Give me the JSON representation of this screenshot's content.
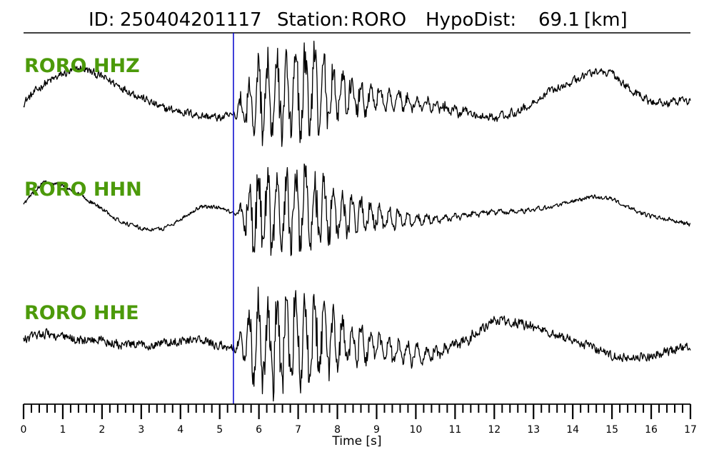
{
  "header": {
    "id_label": "ID:",
    "id_value": "250404201117",
    "station_label": "Station:",
    "station_value": "RORO",
    "hypodist_label": "HypoDist:",
    "hypodist_value": "69.1",
    "hypodist_unit": "[km]"
  },
  "colors": {
    "trace": "#000000",
    "pick_line": "#0000cc",
    "channel_label": "#4c9a0a"
  },
  "chart_data": {
    "type": "line",
    "xlabel": "Time [s]",
    "xlim": [
      0,
      17
    ],
    "x_ticks": [
      0,
      1,
      2,
      3,
      4,
      5,
      6,
      7,
      8,
      9,
      10,
      11,
      12,
      13,
      14,
      15,
      16,
      17
    ],
    "minor_tick_step": 0.2,
    "pick_time": 5.35,
    "series": [
      {
        "name": "RORO HHZ",
        "envelope_t": [
          0,
          0.5,
          1.0,
          1.5,
          2.0,
          2.5,
          3.0,
          3.5,
          4.0,
          4.5,
          5.0,
          5.35,
          5.6,
          6.0,
          6.5,
          7.0,
          7.5,
          8.0,
          8.5,
          9.0,
          9.5,
          10.0,
          10.5,
          11.0,
          11.5,
          12.0,
          12.5,
          13.0,
          13.5,
          14.0,
          14.5,
          15.0,
          15.5,
          16.0,
          16.5,
          17.0
        ],
        "envelope_v": [
          -0.05,
          0.3,
          0.5,
          0.62,
          0.45,
          0.25,
          0.05,
          -0.15,
          -0.22,
          -0.3,
          -0.35,
          -0.3,
          -0.1,
          0.0,
          0.1,
          0.15,
          0.12,
          0.1,
          0.05,
          0.02,
          0.0,
          -0.08,
          -0.12,
          -0.2,
          -0.3,
          -0.35,
          -0.25,
          -0.05,
          0.2,
          0.35,
          0.55,
          0.5,
          0.2,
          -0.05,
          -0.05,
          0.0
        ],
        "noise": 0.12,
        "burst": 0.95
      },
      {
        "name": "RORO HHN",
        "envelope_t": [
          0,
          0.5,
          1.0,
          1.5,
          2.0,
          2.5,
          3.0,
          3.5,
          4.0,
          4.5,
          5.0,
          5.35,
          5.6,
          6.0,
          6.5,
          7.0,
          7.5,
          8.0,
          8.5,
          9.0,
          9.5,
          10.0,
          10.5,
          11.0,
          11.5,
          12.0,
          12.5,
          13.0,
          13.5,
          14.0,
          14.5,
          15.0,
          15.5,
          16.0,
          16.5,
          17.0
        ],
        "envelope_v": [
          0.2,
          0.62,
          0.55,
          0.35,
          0.1,
          -0.15,
          -0.28,
          -0.3,
          -0.1,
          0.15,
          0.12,
          0.0,
          0.0,
          0.05,
          0.05,
          0.05,
          0.05,
          0.0,
          -0.05,
          -0.05,
          -0.1,
          -0.12,
          -0.1,
          -0.05,
          0.0,
          0.05,
          0.05,
          0.1,
          0.15,
          0.25,
          0.35,
          0.3,
          0.1,
          -0.05,
          -0.1,
          -0.2
        ],
        "noise": 0.06,
        "burst": 0.9
      },
      {
        "name": "RORO HHE",
        "envelope_t": [
          0,
          0.5,
          1.0,
          1.5,
          2.0,
          2.5,
          3.0,
          3.5,
          4.0,
          4.5,
          5.0,
          5.35,
          5.6,
          6.0,
          6.5,
          7.0,
          7.5,
          8.0,
          8.5,
          9.0,
          9.5,
          10.0,
          10.5,
          11.0,
          11.5,
          12.0,
          12.5,
          13.0,
          13.5,
          14.0,
          14.5,
          15.0,
          15.5,
          16.0,
          16.5,
          17.0
        ],
        "envelope_v": [
          0.05,
          0.2,
          0.1,
          0.05,
          0.05,
          -0.05,
          -0.05,
          0.0,
          0.05,
          0.05,
          -0.05,
          -0.1,
          0.0,
          0.0,
          0.0,
          0.05,
          0.05,
          0.0,
          -0.05,
          -0.1,
          -0.15,
          -0.25,
          -0.2,
          -0.05,
          0.15,
          0.45,
          0.4,
          0.3,
          0.15,
          0.05,
          -0.1,
          -0.25,
          -0.3,
          -0.25,
          -0.15,
          -0.05
        ],
        "noise": 0.14,
        "burst": 1.0
      }
    ]
  }
}
